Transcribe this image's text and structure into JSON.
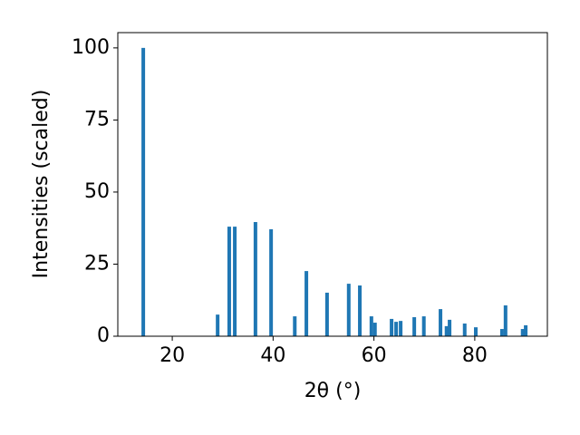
{
  "chart_data": {
    "type": "bar",
    "x_label": "2θ (°)",
    "y_label": "Intensities (scaled)",
    "x": [
      14.25,
      29.0,
      31.3,
      32.4,
      36.5,
      39.6,
      44.3,
      46.6,
      50.7,
      55.0,
      57.2,
      59.5,
      60.2,
      63.5,
      64.4,
      65.3,
      68.0,
      69.9,
      73.2,
      74.4,
      75.0,
      78.0,
      80.2,
      85.4,
      86.1,
      89.5,
      90.1
    ],
    "values": [
      100,
      7.5,
      38,
      38,
      39.6,
      37.1,
      6.9,
      22.6,
      15.1,
      18.2,
      17.6,
      6.9,
      4.7,
      6.0,
      5.0,
      5.3,
      6.6,
      6.9,
      9.4,
      3.5,
      5.7,
      4.4,
      3.1,
      2.5,
      10.7,
      2.5,
      3.8
    ],
    "color": "#1f77b4",
    "xlim": [
      9.2,
      94.4
    ],
    "xticks": [
      20,
      40,
      60,
      80
    ],
    "ylim": [
      0,
      105.3
    ],
    "yticks": [
      0,
      25,
      50,
      75,
      100
    ],
    "grid": false
  }
}
